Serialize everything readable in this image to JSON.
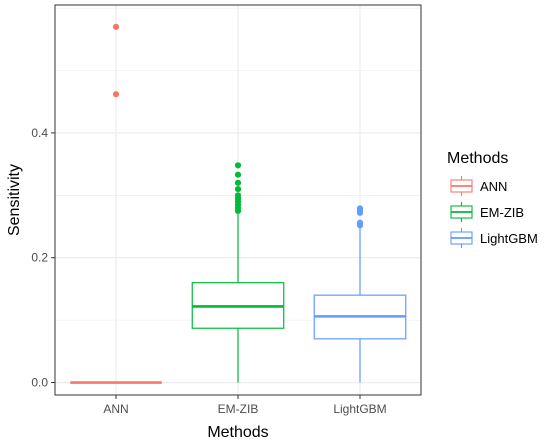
{
  "chart_data": {
    "type": "box",
    "xlabel": "Methods",
    "ylabel": "Sensitivity",
    "categories": [
      "ANN",
      "EM-ZIB",
      "LightGBM"
    ],
    "ylim": [
      -0.02,
      0.605
    ],
    "yticks": [
      0.0,
      0.2,
      0.4
    ],
    "ytick_labels": [
      "0.0",
      "0.2",
      "0.4"
    ],
    "grid": true,
    "legend": {
      "title": "Methods",
      "placement": "right",
      "entries": [
        "ANN",
        "EM-ZIB",
        "LightGBM"
      ]
    },
    "series": [
      {
        "name": "ANN",
        "color": "#F8766D",
        "min": 0.0,
        "q1": 0.0,
        "median": 0.0,
        "q3": 0.0,
        "max": 0.0,
        "outliers": [
          0.57,
          0.462
        ]
      },
      {
        "name": "EM-ZIB",
        "color": "#00BA38",
        "min": 0.0,
        "q1": 0.087,
        "median": 0.122,
        "q3": 0.16,
        "max": 0.27,
        "outliers": [
          0.275,
          0.28,
          0.285,
          0.29,
          0.295,
          0.3,
          0.31,
          0.32,
          0.333,
          0.348
        ]
      },
      {
        "name": "LightGBM",
        "color": "#619CFF",
        "min": 0.0,
        "q1": 0.07,
        "median": 0.106,
        "q3": 0.14,
        "max": 0.248,
        "outliers": [
          0.252,
          0.256,
          0.272,
          0.276,
          0.279
        ]
      }
    ]
  }
}
